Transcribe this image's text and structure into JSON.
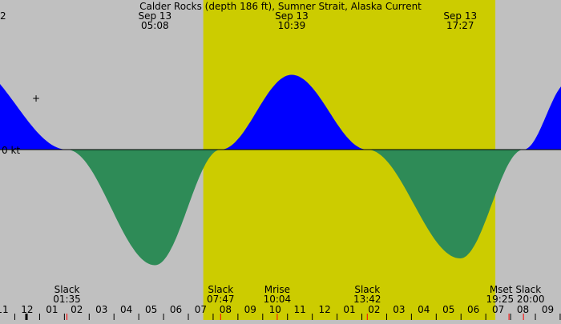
{
  "chart_data": {
    "type": "area",
    "title": "Calder Rocks (depth 186 ft), Sumner Strait, Alaska Current",
    "y_unit_label": "0 kt",
    "y_partial_label": "2",
    "colors": {
      "night": "#c0c0c0",
      "day": "#cccc00",
      "flood": "#0000ff",
      "ebb": "#2e8b57",
      "tick_major": "#000000",
      "tick_marker": "#ff0000"
    },
    "daylight": {
      "start": "07:05",
      "end": "18:52"
    },
    "maxima": [
      {
        "date": "Sep 13",
        "time": "05:08"
      },
      {
        "date": "Sep 13",
        "time": "10:39"
      },
      {
        "date": "Sep 13",
        "time": "17:27"
      }
    ],
    "events": [
      {
        "label": "Slack",
        "time": "01:35"
      },
      {
        "label": "Slack",
        "time": "07:47"
      },
      {
        "label": "Mrise",
        "time": "10:04"
      },
      {
        "label": "Slack",
        "time": "13:42"
      },
      {
        "label": "Mset Slack",
        "time": "19:25 20:00"
      }
    ],
    "x_ticks": [
      "11",
      "12",
      "01",
      "02",
      "03",
      "04",
      "05",
      "06",
      "07",
      "08",
      "09",
      "10",
      "11",
      "12",
      "01",
      "02",
      "03",
      "04",
      "05",
      "06",
      "07",
      "08",
      "09"
    ],
    "series": [
      {
        "values_kt": [
          {
            "time": "21:30",
            "speed": 1.3
          },
          {
            "time": "01:35",
            "speed": 0.0
          },
          {
            "time": "05:08",
            "speed": -1.7
          },
          {
            "time": "07:47",
            "speed": 0.0
          },
          {
            "time": "10:39",
            "speed": 1.1
          },
          {
            "time": "13:42",
            "speed": 0.0
          },
          {
            "time": "17:27",
            "speed": -1.6
          },
          {
            "time": "20:00",
            "speed": 0.0
          },
          {
            "time": "21:50",
            "speed": 1.0
          }
        ]
      }
    ]
  }
}
